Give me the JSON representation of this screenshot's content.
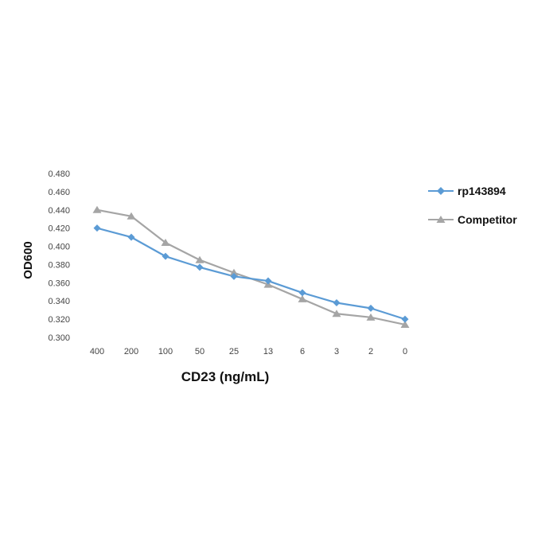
{
  "chart_data": {
    "type": "line",
    "title": "",
    "xlabel": "CD23 (ng/mL)",
    "ylabel": "OD600",
    "categories": [
      "400",
      "200",
      "100",
      "50",
      "25",
      "13",
      "6",
      "3",
      "2",
      "0"
    ],
    "ylim": [
      0.3,
      0.48
    ],
    "yticks": [
      "0.300",
      "0.320",
      "0.340",
      "0.360",
      "0.380",
      "0.400",
      "0.420",
      "0.440",
      "0.460",
      "0.480"
    ],
    "grid": false,
    "legend_position": "right",
    "series": [
      {
        "name": "rp143894",
        "marker": "diamond",
        "color": "#5b9bd5",
        "values": [
          0.42,
          0.41,
          0.389,
          0.377,
          0.367,
          0.362,
          0.349,
          0.338,
          0.332,
          0.32
        ]
      },
      {
        "name": "Competitor",
        "marker": "triangle",
        "color": "#a5a5a5",
        "values": [
          0.44,
          0.433,
          0.404,
          0.385,
          0.371,
          0.358,
          0.342,
          0.326,
          0.322,
          0.314
        ]
      }
    ]
  }
}
